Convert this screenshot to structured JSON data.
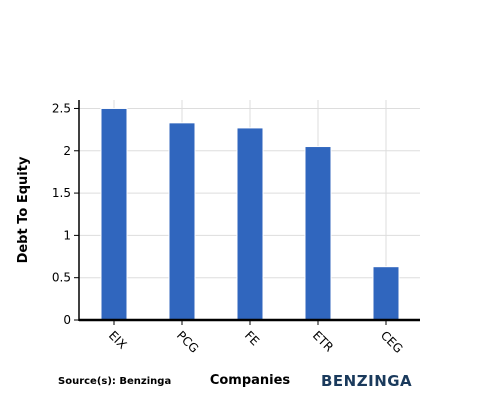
{
  "chart_data": {
    "type": "bar",
    "categories": [
      "EIX",
      "PCG",
      "FE",
      "ETR",
      "CEG"
    ],
    "values": [
      2.5,
      2.33,
      2.27,
      2.05,
      0.63
    ],
    "title": "",
    "xlabel": "Companies",
    "ylabel": "Debt To Equity",
    "ylim": [
      0,
      2.6
    ],
    "yticks": [
      "0",
      "0.5",
      "1",
      "1.5",
      "2",
      "2.5"
    ],
    "grid": true,
    "bar_color": "#3066be"
  },
  "footer": {
    "source": "Source(s): Benzinga",
    "brand": "BENZINGA",
    "brand_color": "#1a3a5c"
  }
}
